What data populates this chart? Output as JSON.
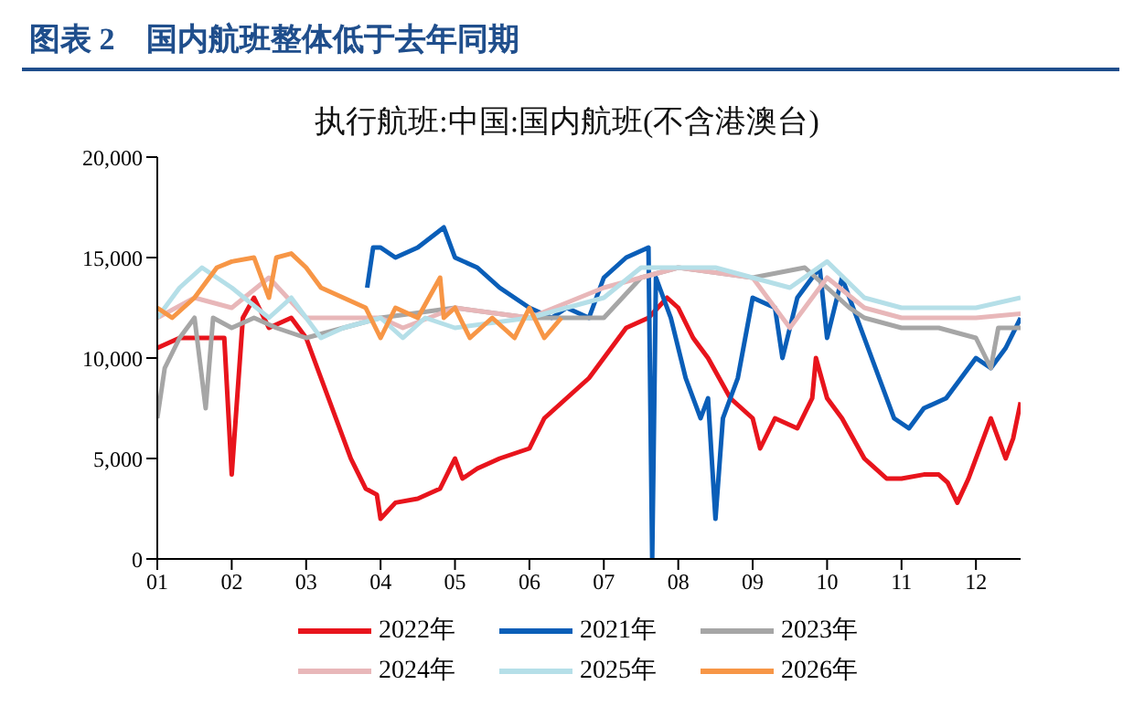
{
  "chart_data": {
    "type": "line",
    "title": "图表 2　国内航班整体低于去年同期",
    "subtitle": "执行航班:中国:国内航班(不含港澳台)",
    "xlim": [
      1,
      12.6
    ],
    "xticks": [
      {
        "value": 1,
        "label": "01"
      },
      {
        "value": 2,
        "label": "02"
      },
      {
        "value": 3,
        "label": "03"
      },
      {
        "value": 4,
        "label": "04"
      },
      {
        "value": 5,
        "label": "05"
      },
      {
        "value": 6,
        "label": "06"
      },
      {
        "value": 7,
        "label": "07"
      },
      {
        "value": 8,
        "label": "08"
      },
      {
        "value": 9,
        "label": "09"
      },
      {
        "value": 10,
        "label": "10"
      },
      {
        "value": 11,
        "label": "11"
      },
      {
        "value": 12,
        "label": "12"
      }
    ],
    "ylim": [
      0,
      20000
    ],
    "yticks": [
      0,
      {
        "value": 5000,
        "label": "5,000"
      },
      {
        "value": 10000,
        "label": "10,000"
      },
      {
        "value": 15000,
        "label": "15,000"
      },
      {
        "value": 20000,
        "label": "20,000"
      }
    ],
    "grid": false,
    "legend": "bottom",
    "marker": "none",
    "line_style": "solid",
    "series": [
      {
        "name": "2022年",
        "color": "#e8141c",
        "x": [
          1,
          1.3,
          1.6,
          1.9,
          2.0,
          2.15,
          2.3,
          2.5,
          2.8,
          3.0,
          3.2,
          3.4,
          3.6,
          3.8,
          3.95,
          4.0,
          4.2,
          4.5,
          4.8,
          5.0,
          5.1,
          5.3,
          5.6,
          6.0,
          6.2,
          6.5,
          6.8,
          7.0,
          7.3,
          7.6,
          7.85,
          8.0,
          8.2,
          8.4,
          8.7,
          9.0,
          9.1,
          9.3,
          9.6,
          9.8,
          9.85,
          10.0,
          10.2,
          10.5,
          10.8,
          11.0,
          11.3,
          11.5,
          11.62,
          11.75,
          11.9,
          12.1,
          12.2,
          12.4,
          12.5,
          12.6
        ],
        "values": [
          10500,
          11000,
          11000,
          11000,
          4200,
          12000,
          13000,
          11500,
          12000,
          11000,
          9000,
          7000,
          5000,
          3500,
          3200,
          2000,
          2800,
          3000,
          3500,
          5000,
          4000,
          4500,
          5000,
          5500,
          7000,
          8000,
          9000,
          10000,
          11500,
          12000,
          13000,
          12500,
          11000,
          10000,
          8000,
          7000,
          5500,
          7000,
          6500,
          8000,
          10000,
          8000,
          7000,
          5000,
          4000,
          4000,
          4200,
          4200,
          3800,
          2800,
          4000,
          6000,
          7000,
          5000,
          6000,
          7800
        ]
      },
      {
        "name": "2021年",
        "color": "#0a5eb8",
        "x": [
          3.82,
          3.9,
          4.0,
          4.2,
          4.5,
          4.85,
          5.0,
          5.3,
          5.6,
          6.0,
          6.3,
          6.5,
          6.8,
          7.0,
          7.3,
          7.6,
          7.65,
          7.7,
          7.9,
          8.1,
          8.3,
          8.4,
          8.5,
          8.6,
          8.8,
          9.0,
          9.3,
          9.4,
          9.6,
          9.9,
          10.0,
          10.2,
          10.5,
          10.7,
          10.9,
          11.1,
          11.3,
          11.6,
          11.8,
          12.0,
          12.2,
          12.4,
          12.6
        ],
        "values": [
          13500,
          15500,
          15500,
          15000,
          15500,
          16500,
          15000,
          14500,
          13500,
          12500,
          12000,
          12500,
          12000,
          14000,
          15000,
          15500,
          0,
          14000,
          12000,
          9000,
          7000,
          8000,
          2000,
          7000,
          9000,
          13000,
          12500,
          10000,
          13000,
          14500,
          11000,
          14000,
          11000,
          9000,
          7000,
          6500,
          7500,
          8000,
          9000,
          10000,
          9500,
          10500,
          12000
        ]
      },
      {
        "name": "2023年",
        "color": "#a6a6a6",
        "x": [
          1,
          1.1,
          1.3,
          1.5,
          1.65,
          1.75,
          2.0,
          2.3,
          2.6,
          3.0,
          3.5,
          4.0,
          5.0,
          6.0,
          7.0,
          7.5,
          8.0,
          9.0,
          9.7,
          10.3,
          10.5,
          11.0,
          11.5,
          12.0,
          12.2,
          12.3,
          12.6
        ],
        "values": [
          7000,
          9500,
          11000,
          12000,
          7500,
          12000,
          11500,
          12000,
          11500,
          11000,
          11500,
          12000,
          12500,
          12000,
          12000,
          14000,
          14500,
          14000,
          14500,
          12500,
          12000,
          11500,
          11500,
          11000,
          9500,
          11500,
          11500
        ]
      },
      {
        "name": "2024年",
        "color": "#e8b7b9",
        "x": [
          1,
          1.5,
          2.0,
          2.5,
          3.0,
          4.0,
          4.3,
          5.0,
          6.0,
          7.0,
          8.0,
          9.0,
          9.5,
          10.0,
          10.5,
          11.0,
          12.0,
          12.6
        ],
        "values": [
          12000,
          13000,
          12500,
          14000,
          12000,
          12000,
          11500,
          12500,
          12000,
          13500,
          14500,
          14000,
          11500,
          14000,
          12500,
          12000,
          12000,
          12200
        ]
      },
      {
        "name": "2025年",
        "color": "#b5dfe8",
        "x": [
          1,
          1.3,
          1.6,
          2.0,
          2.5,
          2.8,
          3.2,
          3.5,
          4.0,
          4.3,
          4.6,
          5.0,
          6.0,
          7.0,
          7.5,
          8.5,
          9.5,
          10.0,
          10.5,
          11.0,
          12.0,
          12.6
        ],
        "values": [
          12000,
          13500,
          14500,
          13500,
          12000,
          13000,
          11000,
          11500,
          12000,
          11000,
          12000,
          11500,
          12000,
          13000,
          14500,
          14500,
          13500,
          14800,
          13000,
          12500,
          12500,
          13000
        ]
      },
      {
        "name": "2026年",
        "color": "#f79646",
        "x": [
          1,
          1.2,
          1.5,
          1.8,
          2.0,
          2.3,
          2.5,
          2.6,
          2.8,
          3.0,
          3.2,
          3.5,
          3.8,
          4.0,
          4.2,
          4.5,
          4.8,
          4.85,
          5.0,
          5.2,
          5.5,
          5.8,
          6.0,
          6.2,
          6.43
        ],
        "values": [
          12500,
          12000,
          13000,
          14500,
          14800,
          15000,
          13000,
          15000,
          15200,
          14500,
          13500,
          13000,
          12500,
          11000,
          12500,
          12000,
          14000,
          12000,
          12500,
          11000,
          12000,
          11000,
          12500,
          11000,
          12000
        ]
      }
    ]
  }
}
